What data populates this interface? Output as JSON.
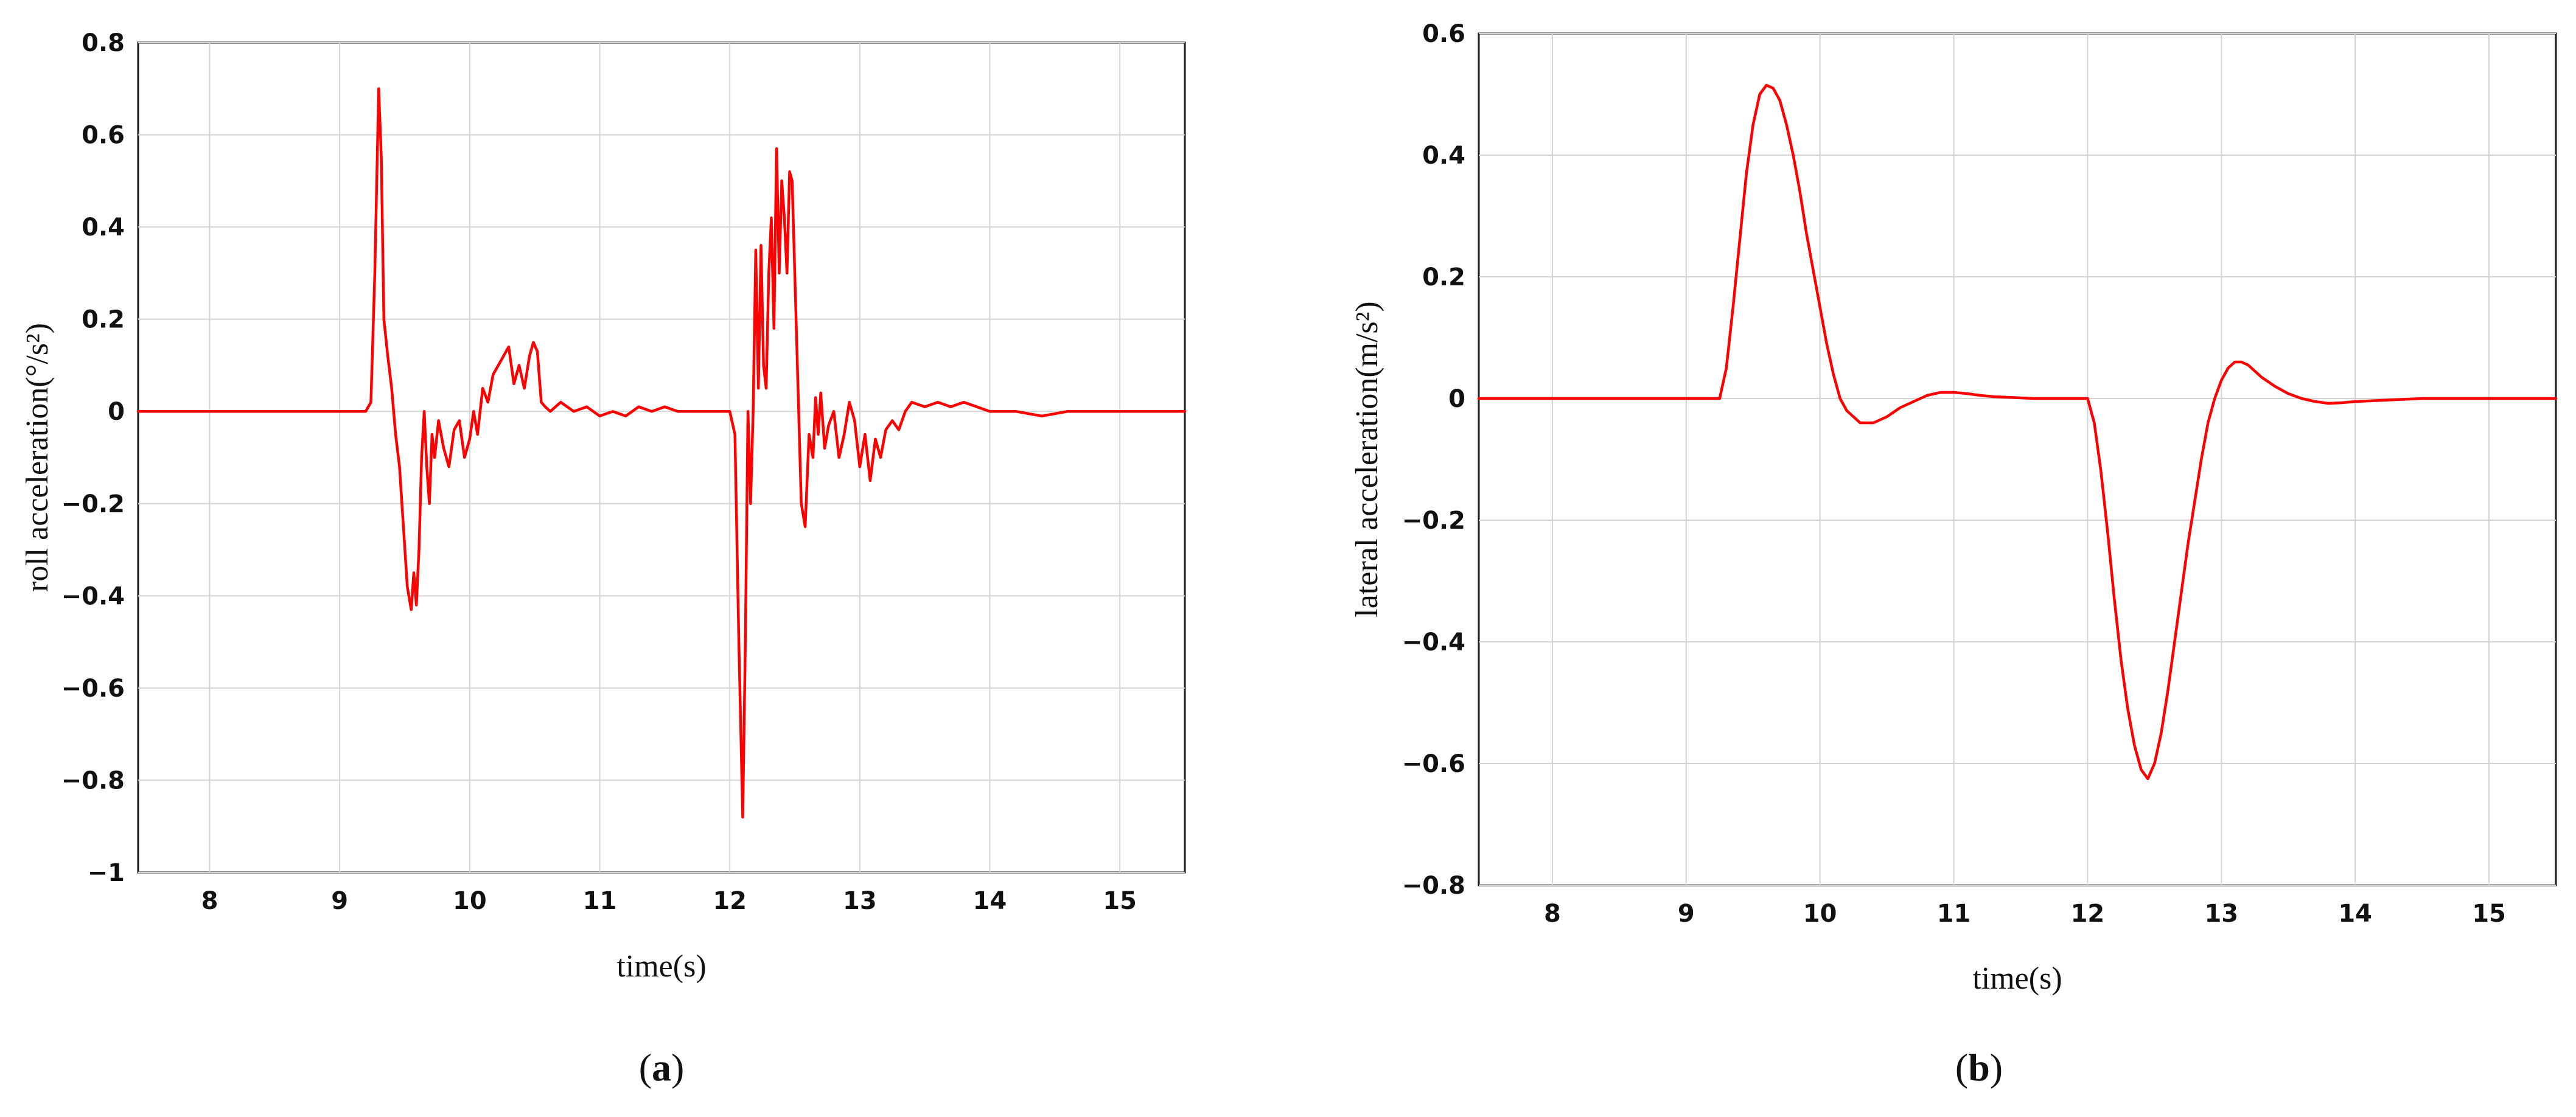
{
  "chart_data": [
    {
      "type": "line",
      "panel": "a",
      "caption_letter": "a",
      "title": "",
      "xlabel": "time(s)",
      "ylabel": "roll acceleration(°/s²)",
      "xlim": [
        7.45,
        15.5
      ],
      "ylim": [
        -1,
        0.8
      ],
      "xticks": [
        8,
        9,
        10,
        11,
        12,
        13,
        14,
        15
      ],
      "xtick_labels": [
        "8",
        "9",
        "10",
        "11",
        "12",
        "13",
        "14",
        "15"
      ],
      "yticks": [
        -1,
        -0.8,
        -0.6,
        -0.4,
        -0.2,
        0,
        0.2,
        0.4,
        0.6,
        0.8
      ],
      "ytick_labels": [
        "−1",
        "−0.8",
        "−0.6",
        "−0.4",
        "−0.2",
        "0",
        "0.2",
        "0.4",
        "0.6",
        "0.8"
      ],
      "grid": true,
      "color": "#ff0000",
      "series": [
        {
          "x": [
            7.45,
            9.2,
            9.24,
            9.27,
            9.3,
            9.32,
            9.34,
            9.37,
            9.4,
            9.43,
            9.46,
            9.49,
            9.52,
            9.55,
            9.57,
            9.59,
            9.61,
            9.63,
            9.65,
            9.67,
            9.69,
            9.71,
            9.73,
            9.76,
            9.8,
            9.84,
            9.88,
            9.92,
            9.96,
            10.0,
            10.03,
            10.06,
            10.1,
            10.14,
            10.18,
            10.22,
            10.26,
            10.3,
            10.34,
            10.38,
            10.42,
            10.46,
            10.49,
            10.52,
            10.55,
            10.58,
            10.62,
            10.7,
            10.8,
            10.9,
            11.0,
            11.1,
            11.2,
            11.3,
            11.4,
            11.5,
            11.6,
            11.7,
            11.8,
            11.9,
            12.0,
            12.04,
            12.07,
            12.1,
            12.12,
            12.14,
            12.16,
            12.18,
            12.2,
            12.22,
            12.24,
            12.26,
            12.28,
            12.3,
            12.32,
            12.34,
            12.36,
            12.38,
            12.4,
            12.42,
            12.44,
            12.46,
            12.48,
            12.5,
            12.52,
            12.55,
            12.58,
            12.61,
            12.64,
            12.66,
            12.68,
            12.7,
            12.73,
            12.76,
            12.8,
            12.84,
            12.88,
            12.92,
            12.96,
            13.0,
            13.04,
            13.08,
            13.12,
            13.16,
            13.2,
            13.25,
            13.3,
            13.35,
            13.4,
            13.5,
            13.6,
            13.7,
            13.8,
            13.9,
            14.0,
            14.2,
            14.4,
            14.6,
            14.8,
            15.0,
            15.2,
            15.5
          ],
          "y": [
            0,
            0,
            0.02,
            0.3,
            0.7,
            0.55,
            0.2,
            0.12,
            0.05,
            -0.05,
            -0.12,
            -0.25,
            -0.38,
            -0.43,
            -0.35,
            -0.42,
            -0.3,
            -0.1,
            0.0,
            -0.12,
            -0.2,
            -0.05,
            -0.1,
            -0.02,
            -0.08,
            -0.12,
            -0.04,
            -0.02,
            -0.1,
            -0.06,
            0.0,
            -0.05,
            0.05,
            0.02,
            0.08,
            0.1,
            0.12,
            0.14,
            0.06,
            0.1,
            0.05,
            0.12,
            0.15,
            0.13,
            0.02,
            0.01,
            0.0,
            0.02,
            0.0,
            0.01,
            -0.01,
            0.0,
            -0.01,
            0.01,
            0.0,
            0.01,
            0.0,
            0.0,
            0.0,
            0.0,
            0.0,
            -0.05,
            -0.5,
            -0.88,
            -0.5,
            0.0,
            -0.2,
            0.0,
            0.35,
            0.05,
            0.36,
            0.1,
            0.05,
            0.3,
            0.42,
            0.18,
            0.57,
            0.3,
            0.5,
            0.42,
            0.3,
            0.52,
            0.5,
            0.3,
            0.1,
            -0.2,
            -0.25,
            -0.05,
            -0.1,
            0.03,
            -0.05,
            0.04,
            -0.08,
            -0.03,
            0.0,
            -0.1,
            -0.05,
            0.02,
            -0.02,
            -0.12,
            -0.05,
            -0.15,
            -0.06,
            -0.1,
            -0.04,
            -0.02,
            -0.04,
            0.0,
            0.02,
            0.01,
            0.02,
            0.01,
            0.02,
            0.01,
            0.0,
            0.0,
            -0.01,
            0.0,
            0.0,
            0.0,
            0.0,
            0.0
          ]
        }
      ]
    },
    {
      "type": "line",
      "panel": "b",
      "caption_letter": "b",
      "title": "",
      "xlabel": "time(s)",
      "ylabel": "lateral acceleration(m/s²)",
      "xlim": [
        7.45,
        15.5
      ],
      "ylim": [
        -0.8,
        0.6
      ],
      "xticks": [
        8,
        9,
        10,
        11,
        12,
        13,
        14,
        15
      ],
      "xtick_labels": [
        "8",
        "9",
        "10",
        "11",
        "12",
        "13",
        "14",
        "15"
      ],
      "yticks": [
        -0.8,
        -0.6,
        -0.4,
        -0.2,
        0,
        0.2,
        0.4,
        0.6
      ],
      "ytick_labels": [
        "−0.8",
        "−0.6",
        "−0.4",
        "−0.2",
        "0",
        "0.2",
        "0.4",
        "0.6"
      ],
      "grid": true,
      "color": "#ff0000",
      "series": [
        {
          "x": [
            7.45,
            9.25,
            9.3,
            9.35,
            9.4,
            9.45,
            9.5,
            9.55,
            9.6,
            9.65,
            9.7,
            9.75,
            9.8,
            9.85,
            9.9,
            9.95,
            10.0,
            10.05,
            10.1,
            10.15,
            10.2,
            10.25,
            10.3,
            10.35,
            10.4,
            10.45,
            10.5,
            10.6,
            10.7,
            10.8,
            10.9,
            11.0,
            11.1,
            11.2,
            11.3,
            11.4,
            11.5,
            11.6,
            11.7,
            11.8,
            11.9,
            12.0,
            12.05,
            12.1,
            12.15,
            12.2,
            12.25,
            12.3,
            12.35,
            12.4,
            12.45,
            12.5,
            12.55,
            12.6,
            12.65,
            12.7,
            12.75,
            12.8,
            12.85,
            12.9,
            12.95,
            13.0,
            13.05,
            13.1,
            13.15,
            13.2,
            13.25,
            13.3,
            13.4,
            13.5,
            13.6,
            13.7,
            13.8,
            13.9,
            14.0,
            14.2,
            14.5,
            15.0,
            15.5
          ],
          "y": [
            0,
            0,
            0.05,
            0.15,
            0.26,
            0.37,
            0.45,
            0.5,
            0.515,
            0.51,
            0.49,
            0.45,
            0.4,
            0.34,
            0.27,
            0.21,
            0.15,
            0.09,
            0.04,
            0.0,
            -0.02,
            -0.03,
            -0.04,
            -0.04,
            -0.04,
            -0.035,
            -0.03,
            -0.015,
            -0.005,
            0.005,
            0.01,
            0.01,
            0.008,
            0.005,
            0.003,
            0.002,
            0.001,
            0.0,
            0.0,
            0.0,
            0.0,
            0.0,
            -0.04,
            -0.12,
            -0.22,
            -0.33,
            -0.43,
            -0.51,
            -0.57,
            -0.61,
            -0.625,
            -0.6,
            -0.55,
            -0.48,
            -0.4,
            -0.32,
            -0.24,
            -0.17,
            -0.1,
            -0.04,
            0.0,
            0.03,
            0.05,
            0.06,
            0.06,
            0.055,
            0.045,
            0.035,
            0.02,
            0.008,
            0.0,
            -0.005,
            -0.008,
            -0.007,
            -0.005,
            -0.003,
            0.0,
            0.0,
            0.0
          ]
        }
      ]
    }
  ]
}
